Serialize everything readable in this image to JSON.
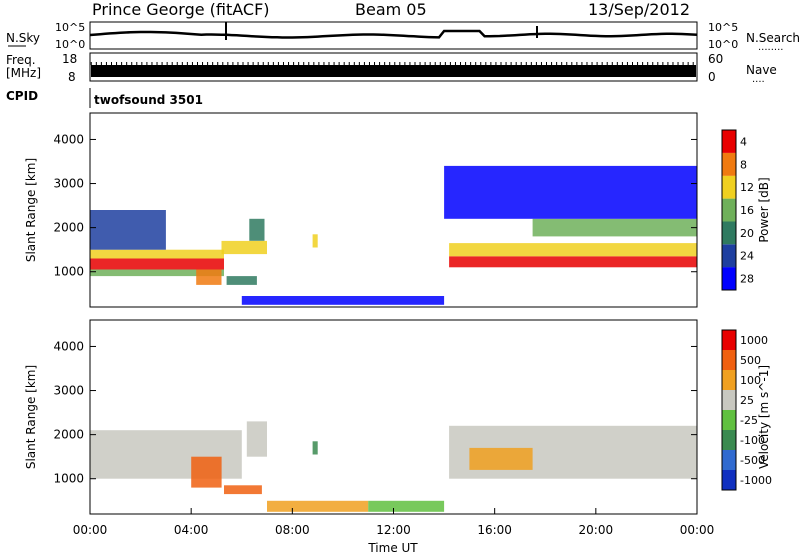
{
  "header": {
    "station": "Prince George (fitACF)",
    "beam": "Beam 05",
    "date": "13/Sep/2012"
  },
  "nsky_panel": {
    "left_label": "N.Sky",
    "left_ticks": [
      "10^5",
      "10^0"
    ],
    "right_ticks": [
      "10^5",
      "10^0"
    ],
    "right_label": "N.Search",
    "right_dots": "........"
  },
  "freq_panel": {
    "left_label_1": "Freq.",
    "left_label_2": "[MHz]",
    "left_ticks": [
      "18",
      "8"
    ],
    "right_ticks": [
      "60",
      "0"
    ],
    "right_label": "Nave",
    "right_dots": "...."
  },
  "cpid": {
    "label": "CPID",
    "value": "twofsound 3501"
  },
  "chart_data": [
    {
      "type": "heatmap",
      "name": "power-panel",
      "ylabel": "Slant Range [km]",
      "yticks": [
        1000,
        2000,
        3000,
        4000
      ],
      "ylim": [
        200,
        4600
      ],
      "xlim_hours": [
        0,
        24
      ],
      "colorbar": {
        "label": "Power [dB]",
        "ticks": [
          "4",
          "8",
          "12",
          "16",
          "20",
          "24",
          "28"
        ],
        "colors": [
          "#0000ff",
          "#1e3fa0",
          "#2f7a60",
          "#6fb05a",
          "#f0d020",
          "#f07a10",
          "#e80000"
        ]
      },
      "bands": [
        {
          "t0": 0.0,
          "t1": 5.3,
          "r0": 1050,
          "r1": 1300,
          "level": 6
        },
        {
          "t0": 0.0,
          "t1": 5.3,
          "r0": 1300,
          "r1": 1500,
          "level": 4
        },
        {
          "t0": 0.0,
          "t1": 5.3,
          "r0": 900,
          "r1": 1050,
          "level": 3
        },
        {
          "t0": 0.0,
          "t1": 3.0,
          "r0": 1500,
          "r1": 2400,
          "level": 1
        },
        {
          "t0": 4.2,
          "t1": 5.2,
          "r0": 700,
          "r1": 1050,
          "level": 5
        },
        {
          "t0": 5.2,
          "t1": 7.0,
          "r0": 1400,
          "r1": 1700,
          "level": 4
        },
        {
          "t0": 5.4,
          "t1": 6.6,
          "r0": 700,
          "r1": 900,
          "level": 2
        },
        {
          "t0": 6.3,
          "t1": 6.9,
          "r0": 1700,
          "r1": 2200,
          "level": 2
        },
        {
          "t0": 8.8,
          "t1": 9.0,
          "r0": 1550,
          "r1": 1850,
          "level": 4
        },
        {
          "t0": 6.0,
          "t1": 14.0,
          "r0": 250,
          "r1": 450,
          "level": 0
        },
        {
          "t0": 14.2,
          "t1": 24.0,
          "r0": 1100,
          "r1": 1350,
          "level": 6
        },
        {
          "t0": 14.2,
          "t1": 24.0,
          "r0": 1350,
          "r1": 1650,
          "level": 4
        },
        {
          "t0": 17.5,
          "t1": 24.0,
          "r0": 1800,
          "r1": 2200,
          "level": 3
        },
        {
          "t0": 14.0,
          "t1": 24.0,
          "r0": 2200,
          "r1": 3400,
          "level": 0
        }
      ]
    },
    {
      "type": "heatmap",
      "name": "velocity-panel",
      "ylabel": "Slant Range [km]",
      "yticks": [
        1000,
        2000,
        3000,
        4000
      ],
      "ylim": [
        200,
        4600
      ],
      "xlim_hours": [
        0,
        24
      ],
      "xticks": [
        "00:00",
        "04:00",
        "08:00",
        "12:00",
        "16:00",
        "20:00",
        "00:00"
      ],
      "xlabel": "Time UT",
      "colorbar": {
        "label": "Velocity [m s^-1]",
        "ticks": [
          "1000",
          "500",
          "100",
          "25",
          "-25",
          "-100",
          "-500",
          "-1000"
        ],
        "colors": [
          "#1030c0",
          "#306ad0",
          "#3a8a50",
          "#60c040",
          "#c8c8c0",
          "#f0a020",
          "#f06010",
          "#e80000"
        ]
      },
      "bands": [
        {
          "t0": 0.0,
          "t1": 6.0,
          "r0": 1000,
          "r1": 2100,
          "level": 4
        },
        {
          "t0": 4.0,
          "t1": 5.2,
          "r0": 800,
          "r1": 1500,
          "level": 6
        },
        {
          "t0": 5.3,
          "t1": 6.8,
          "r0": 650,
          "r1": 850,
          "level": 6
        },
        {
          "t0": 6.2,
          "t1": 7.0,
          "r0": 1500,
          "r1": 2300,
          "level": 4
        },
        {
          "t0": 8.8,
          "t1": 9.0,
          "r0": 1550,
          "r1": 1850,
          "level": 2
        },
        {
          "t0": 7.0,
          "t1": 11.0,
          "r0": 250,
          "r1": 500,
          "level": 5
        },
        {
          "t0": 11.0,
          "t1": 14.0,
          "r0": 250,
          "r1": 500,
          "level": 3
        },
        {
          "t0": 14.2,
          "t1": 24.0,
          "r0": 1000,
          "r1": 2200,
          "level": 4
        },
        {
          "t0": 15.0,
          "t1": 17.5,
          "r0": 1200,
          "r1": 1700,
          "level": 5
        }
      ]
    }
  ]
}
